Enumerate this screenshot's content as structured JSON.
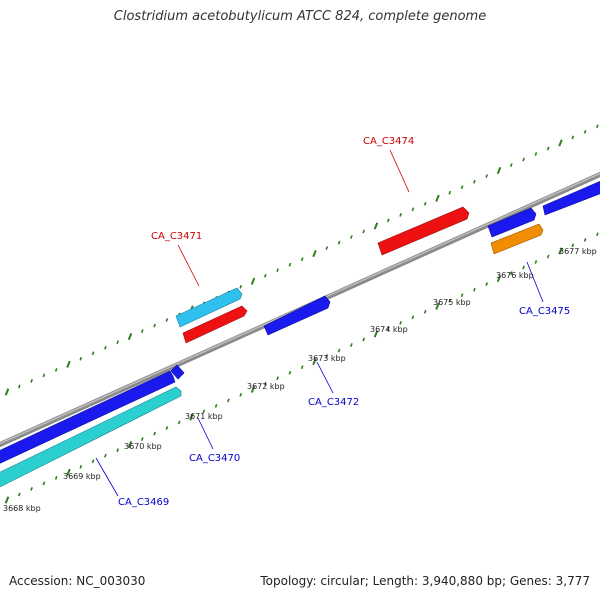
{
  "title": "Clostridium acetobutylicum ATCC 824, complete genome",
  "footer": {
    "accession": "Accession: NC_003030",
    "summary": "Topology: circular; Length: 3,940,880 bp; Genes: 3,777"
  },
  "colors": {
    "backbone": "#8a8a8a",
    "tick": "#2e7d1e",
    "label_red": "#cc0000",
    "label_blue": "#0000cc",
    "gene_blue": "#1a1aee",
    "gene_red": "#ee1111",
    "gene_cyan": "#2ccfd0",
    "gene_skyblue": "#2ec0ee",
    "gene_orange": "#f28c00"
  },
  "scale_labels": [
    "3668 kbp",
    "3669 kbp",
    "3670 kbp",
    "3671 kbp",
    "3672 kbp",
    "3673 kbp",
    "3674 kbp",
    "3675 kbp",
    "3676 kbp",
    "3677 kbp"
  ],
  "gene_labels": {
    "ca_c3469": "CA_C3469",
    "ca_c3470": "CA_C3470",
    "ca_c3471": "CA_C3471",
    "ca_c3472": "CA_C3472",
    "ca_c3474": "CA_C3474",
    "ca_c3475": "CA_C3475"
  }
}
